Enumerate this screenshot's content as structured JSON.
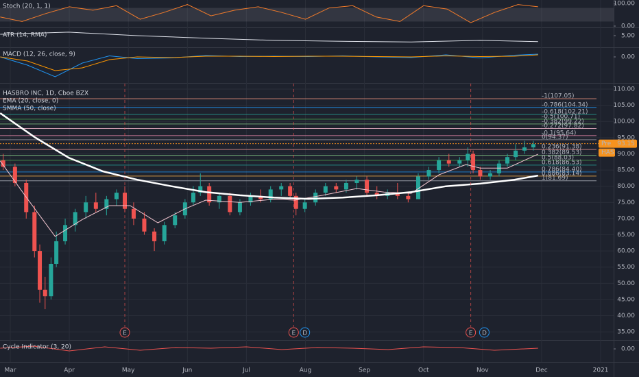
{
  "chart_data": [
    {
      "type": "line",
      "title": "Stoch (20, 1, 1)",
      "ylim": [
        -6,
        115
      ],
      "yticks": [
        {
          "value": 100,
          "label": "100.00"
        },
        {
          "value": 0,
          "label": "0.00"
        }
      ],
      "band": [
        20,
        80
      ],
      "series": [
        {
          "name": null,
          "color": "#f57c2a",
          "x": [
            2.83,
            3.2,
            3.6,
            4.0,
            4.4,
            4.8,
            5.2,
            5.6,
            6.0,
            6.4,
            6.8,
            7.2,
            7.6,
            8.0,
            8.4,
            8.8,
            9.2,
            9.6,
            10.0,
            10.4,
            10.8,
            11.2,
            11.6,
            11.94
          ],
          "values": [
            40,
            20,
            55,
            85,
            70,
            90,
            30,
            60,
            95,
            45,
            70,
            85,
            60,
            30,
            80,
            90,
            40,
            20,
            90,
            75,
            15,
            60,
            95,
            85
          ]
        }
      ]
    },
    {
      "type": "line",
      "title": "ATR (14, RMA)",
      "ylim": [
        1.52,
        7.17
      ],
      "yticks": [
        {
          "value": 5,
          "label": "5.00"
        }
      ],
      "series": [
        {
          "name": null,
          "color": "#e0e3eb",
          "x": [
            2.83,
            3.99,
            5.15,
            6.31,
            7.47,
            8.63,
            9.79,
            10.96,
            11.94
          ],
          "values": [
            5.43,
            6.1,
            5.0,
            4.2,
            3.5,
            3.2,
            3.0,
            3.5,
            3.1
          ]
        }
      ]
    },
    {
      "type": "line",
      "title": "MACD (12, 26, close, 9)",
      "ylim": [
        -7.4,
        2.6
      ],
      "yticks": [
        {
          "value": 0,
          "label": "0.00"
        }
      ],
      "series": [
        {
          "name": null,
          "color": "#2196f3",
          "x": [
            2.83,
            3.29,
            3.76,
            4.22,
            4.68,
            5.15,
            5.73,
            6.31,
            6.89,
            7.47,
            8.05,
            8.63,
            9.21,
            9.79,
            10.38,
            10.96,
            11.54,
            11.94
          ],
          "values": [
            0,
            -2.4,
            -5.8,
            -1.8,
            0.3,
            -0.5,
            -0.3,
            0.4,
            0.1,
            0.2,
            0.1,
            0.3,
            0,
            -0.2,
            0.6,
            -0.3,
            0.5,
            0.8
          ]
        },
        {
          "name": null,
          "color": "#ff9800",
          "x": [
            2.83,
            3.29,
            3.76,
            4.22,
            4.68,
            5.15,
            5.73,
            6.31,
            6.89,
            7.47,
            8.05,
            8.63,
            9.21,
            9.79,
            10.38,
            10.96,
            11.54,
            11.94
          ],
          "values": [
            0,
            -1.2,
            -4,
            -3.2,
            -0.8,
            0,
            -0.2,
            0.2,
            0.2,
            0.1,
            0.2,
            0.2,
            0.1,
            0,
            0.3,
            0.1,
            0.2,
            0.6
          ]
        }
      ]
    },
    {
      "type": "candlestick",
      "title": "HASBRO INC, 1D, Cboe BZX",
      "ylim": [
        32.7,
        111.7
      ],
      "grid": true,
      "up_color": "#26a69a",
      "down_color": "#ef5350",
      "yticks": [
        {
          "value": 110,
          "label": "110.00"
        },
        {
          "value": 105,
          "label": "105.00"
        },
        {
          "value": 100,
          "label": "100.00"
        },
        {
          "value": 95,
          "label": "95.00"
        },
        {
          "value": 90,
          "label": "90.00"
        },
        {
          "value": 85,
          "label": "85.00"
        },
        {
          "value": 80,
          "label": "80.00"
        },
        {
          "value": 75,
          "label": "75.00"
        },
        {
          "value": 70,
          "label": "70.00"
        },
        {
          "value": 65,
          "label": "65.00"
        },
        {
          "value": 60,
          "label": "60.00"
        },
        {
          "value": 55,
          "label": "55.00"
        },
        {
          "value": 50,
          "label": "50.00"
        },
        {
          "value": 45,
          "label": "45.00"
        },
        {
          "value": 40,
          "label": "40.00"
        },
        {
          "value": 35,
          "label": "35.00"
        }
      ],
      "x": [
        2.88,
        3.08,
        3.27,
        3.41,
        3.5,
        3.59,
        3.69,
        3.78,
        3.93,
        4.1,
        4.28,
        4.45,
        4.63,
        4.8,
        4.94,
        5.09,
        5.27,
        5.44,
        5.61,
        5.79,
        5.96,
        6.1,
        6.22,
        6.37,
        6.54,
        6.72,
        6.89,
        7.07,
        7.24,
        7.41,
        7.59,
        7.74,
        7.84,
        7.99,
        8.17,
        8.34,
        8.52,
        8.69,
        8.87,
        9.04,
        9.21,
        9.39,
        9.56,
        9.74,
        9.91,
        10.09,
        10.26,
        10.43,
        10.61,
        10.75,
        10.84,
        10.96,
        11.13,
        11.28,
        11.42,
        11.56,
        11.71,
        11.86
      ],
      "open": [
        88,
        86,
        81,
        72,
        60,
        48,
        46,
        56,
        63,
        68,
        72,
        75,
        73,
        76,
        78,
        73,
        70,
        66,
        63,
        68,
        71,
        75,
        78,
        80,
        75,
        77,
        72,
        75,
        77,
        76,
        79,
        80,
        77,
        73,
        75,
        78,
        80,
        79,
        81,
        82,
        78,
        77,
        78,
        77,
        76,
        83,
        85,
        88,
        87,
        88,
        90,
        85,
        83,
        84,
        87,
        89,
        91,
        92
      ],
      "high": [
        90,
        87,
        82,
        74,
        62,
        52,
        58,
        66,
        70,
        73,
        77,
        78,
        77,
        79,
        80,
        75,
        72,
        67,
        69,
        72,
        76,
        80,
        84,
        81,
        78,
        78,
        76,
        78,
        79,
        80,
        81,
        81,
        78,
        76,
        79,
        81,
        81,
        82,
        83,
        83,
        80,
        79,
        81,
        78,
        84,
        86,
        89,
        90,
        89,
        92,
        91,
        86,
        85,
        88,
        90,
        93,
        94,
        94
      ],
      "low": [
        85,
        80,
        70,
        58,
        44,
        42,
        45,
        55,
        62,
        66,
        70,
        72,
        71,
        74,
        72,
        68,
        65,
        60,
        62,
        67,
        70,
        74,
        77,
        74,
        73,
        71,
        71,
        74,
        75,
        75,
        77,
        76,
        71,
        72,
        74,
        77,
        78,
        78,
        79,
        77,
        76,
        76,
        76,
        75,
        76,
        82,
        84,
        86,
        86,
        86,
        84,
        82,
        82,
        83,
        86,
        88,
        90,
        91
      ],
      "close": [
        86,
        81,
        72,
        60,
        48,
        46,
        56,
        63,
        68,
        72,
        75,
        73,
        76,
        78,
        73,
        70,
        66,
        63,
        68,
        71,
        75,
        78,
        80,
        75,
        77,
        72,
        75,
        77,
        76,
        79,
        80,
        77,
        73,
        75,
        78,
        80,
        79,
        81,
        82,
        78,
        77,
        78,
        77,
        76,
        83,
        85,
        88,
        87,
        88,
        90,
        85,
        83,
        84,
        87,
        89,
        91,
        92,
        93
      ],
      "series": [
        {
          "name": "EMA (20, close, 0)",
          "color": "#f3c6d0",
          "width": 1,
          "x": [
            2.83,
            3.29,
            3.76,
            4.22,
            4.68,
            5.03,
            5.5,
            5.96,
            6.31,
            6.89,
            7.47,
            7.82,
            8.29,
            8.87,
            9.33,
            9.79,
            10.26,
            10.72,
            10.96,
            11.42,
            11.94
          ],
          "values": [
            87.8,
            76.1,
            64.5,
            69.7,
            74,
            74,
            68.7,
            73,
            75.7,
            75,
            76,
            75.7,
            77.2,
            79.3,
            78.2,
            77.8,
            83.5,
            86.7,
            85.6,
            85.6,
            89.9
          ]
        },
        {
          "name": "SMMA (50, close)",
          "color": "#ffffff",
          "width": 2.5,
          "x": [
            2.83,
            3.41,
            3.99,
            4.57,
            5.15,
            5.73,
            6.31,
            6.89,
            7.47,
            8.05,
            8.63,
            9.21,
            9.79,
            10.38,
            10.96,
            11.54,
            11.94
          ],
          "values": [
            102.6,
            95.2,
            88.8,
            84.6,
            82,
            80,
            78.2,
            77.2,
            76.5,
            76.1,
            76.5,
            77.2,
            78.2,
            80,
            80.8,
            82,
            83.3
          ]
        }
      ],
      "levels": [
        {
          "value": 107.05,
          "label": "-1(107.05)",
          "color": "#e8907a"
        },
        {
          "value": 104.34,
          "label": "-0.786(104.34)",
          "color": "#2196f3"
        },
        {
          "value": 102.21,
          "label": "-0.618(102.21)",
          "color": "#26a69a"
        },
        {
          "value": 100.71,
          "label": "-0.5(100.71)",
          "color": "#4caf50"
        },
        {
          "value": 99.22,
          "label": "-0.382(99.22)",
          "color": "#81c784"
        },
        {
          "value": 97.82,
          "label": "-0.272(97.82)",
          "color": "#f8bbd0"
        },
        {
          "value": 95.64,
          "label": "-0.1(95.64)",
          "color": "#f48fb1"
        },
        {
          "value": 94.37,
          "label": "0(94.37)",
          "color": "#9598a1"
        },
        {
          "value": 91.38,
          "label": "0.236(91.38)",
          "color": "#ef9a9a"
        },
        {
          "value": 89.53,
          "label": "0.382(89.53)",
          "color": "#81c784"
        },
        {
          "value": 88.03,
          "label": "0.5(88.03)",
          "color": "#4caf50"
        },
        {
          "value": 86.53,
          "label": "0.618(86.53)",
          "color": "#26a69a"
        },
        {
          "value": 84.4,
          "label": "0.786(84.40)",
          "color": "#2196f3"
        },
        {
          "value": 83.14,
          "label": "0.886(83.14)",
          "color": "#ffb74d"
        },
        {
          "value": 81.69,
          "label": "1(81.69)",
          "color": "#b2b5be"
        }
      ],
      "last_price": 93.15,
      "pre_label": "Pre",
      "symbol_label": "HAS",
      "events": [
        {
          "x": 4.94,
          "label": "E"
        },
        {
          "x": 7.8,
          "label": "E"
        },
        {
          "x": 7.99,
          "label": "D"
        },
        {
          "x": 10.8,
          "label": "E"
        },
        {
          "x": 11.03,
          "label": "D"
        }
      ]
    },
    {
      "type": "line",
      "title": "Cycle Indicator (3, 20)",
      "ylim": [
        -1.9,
        1.2
      ],
      "yticks": [
        {
          "value": 0,
          "label": "0.00"
        }
      ],
      "series": [
        {
          "name": null,
          "color": "#ef5350",
          "x": [
            2.83,
            3.4,
            4.0,
            4.6,
            5.2,
            5.8,
            6.4,
            7.0,
            7.6,
            8.2,
            8.8,
            9.4,
            10.0,
            10.6,
            11.2,
            11.94
          ],
          "values": [
            0.1,
            0.4,
            -0.3,
            0.3,
            -0.2,
            0.2,
            0.1,
            0.3,
            -0.1,
            0.2,
            0.1,
            -0.1,
            0.3,
            0.2,
            -0.2,
            0.1
          ]
        }
      ]
    },
    {
      "type": "axis",
      "xlim": [
        2.826,
        13.22
      ],
      "xticks": [
        {
          "value": 3,
          "label": "Mar"
        },
        {
          "value": 4,
          "label": "Apr"
        },
        {
          "value": 5,
          "label": "May"
        },
        {
          "value": 6,
          "label": "Jun"
        },
        {
          "value": 7,
          "label": "Jul"
        },
        {
          "value": 8,
          "label": "Aug"
        },
        {
          "value": 9,
          "label": "Sep"
        },
        {
          "value": 10,
          "label": "Oct"
        },
        {
          "value": 11,
          "label": "Nov"
        },
        {
          "value": 12,
          "label": "Dec"
        },
        {
          "value": 13,
          "label": "2021"
        }
      ]
    }
  ]
}
